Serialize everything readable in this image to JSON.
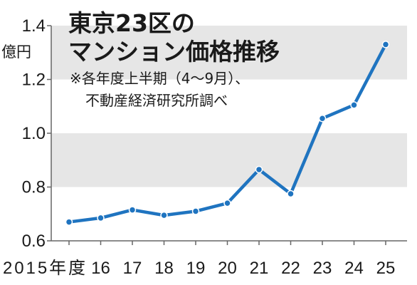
{
  "chart_data": {
    "type": "line",
    "title_lines": [
      "東京23区の",
      "マンション価格推移"
    ],
    "note_lines": [
      "※各年度上半期（4〜9月）、",
      "不動産経済研究所調べ"
    ],
    "y_unit": "億円",
    "categories": [
      "2015年度",
      "16",
      "17",
      "18",
      "19",
      "20",
      "21",
      "22",
      "23",
      "24",
      "25"
    ],
    "values": [
      0.67,
      0.685,
      0.715,
      0.695,
      0.71,
      0.74,
      0.865,
      0.775,
      1.055,
      1.105,
      1.33
    ],
    "y_ticks": [
      "1.4",
      "1.2",
      "1.0",
      "0.8",
      "0.6"
    ],
    "ylim": [
      0.6,
      1.4
    ],
    "grid": "alternating horizontal bands",
    "colors": {
      "line": "#1f74c0",
      "band": "#e6e6e6",
      "axis": "#666666",
      "text": "#1a1a1a"
    }
  }
}
